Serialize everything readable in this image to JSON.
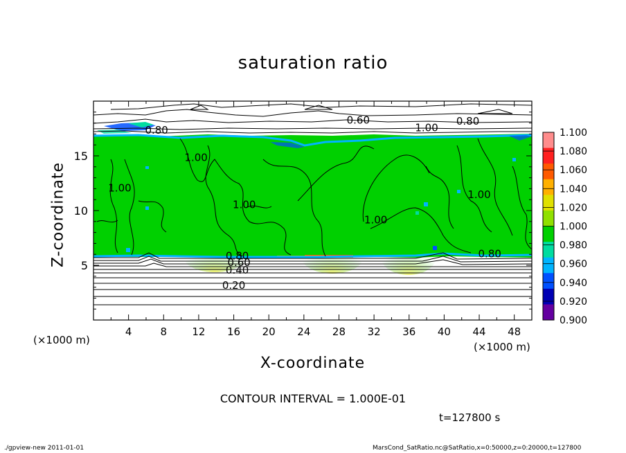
{
  "chart_data": {
    "type": "heatmap",
    "title": "saturation ratio",
    "xlabel": "X-coordinate",
    "ylabel": "Z-coordinate",
    "x_unit_label": "(×1000 m)",
    "x_ticks": [
      "4",
      "8",
      "12",
      "16",
      "20",
      "24",
      "28",
      "32",
      "36",
      "40",
      "44",
      "48"
    ],
    "x_tick_values": [
      4,
      8,
      12,
      16,
      20,
      24,
      28,
      32,
      36,
      40,
      44,
      48
    ],
    "y_ticks": [
      "5",
      "10",
      "15"
    ],
    "y_tick_values": [
      5,
      10,
      15
    ],
    "xlim": [
      0,
      50
    ],
    "ylim": [
      0,
      20
    ],
    "colorbar": {
      "labels": [
        "1.100",
        "1.080",
        "1.060",
        "1.040",
        "1.020",
        "1.000",
        "0.980",
        "0.960",
        "0.940",
        "0.920",
        "0.900"
      ],
      "colors": [
        "#ff8c8c",
        "#ff2020",
        "#ff5a00",
        "#ffb000",
        "#e0e000",
        "#90e000",
        "#00d000",
        "#00dca0",
        "#00b4ff",
        "#0050ff",
        "#0000b4",
        "#6400a0"
      ]
    },
    "contour_labels": [
      {
        "text": "0.60",
        "x": 30.2,
        "y": 18.0
      },
      {
        "text": "0.80",
        "x": 42.7,
        "y": 17.9
      },
      {
        "text": "1.00",
        "x": 38.0,
        "y": 17.3
      },
      {
        "text": "0.80",
        "x": 7.2,
        "y": 17.1
      },
      {
        "text": "1.00",
        "x": 11.7,
        "y": 14.6
      },
      {
        "text": "1.00",
        "x": 3.0,
        "y": 11.8
      },
      {
        "text": "1.00",
        "x": 17.2,
        "y": 10.3
      },
      {
        "text": "1.00",
        "x": 32.2,
        "y": 8.9
      },
      {
        "text": "1.00",
        "x": 44.0,
        "y": 11.2
      },
      {
        "text": "0.80",
        "x": 45.2,
        "y": 5.8
      },
      {
        "text": "0.80",
        "x": 16.4,
        "y": 5.6
      },
      {
        "text": "0.60",
        "x": 16.6,
        "y": 5.0
      },
      {
        "text": "0.40",
        "x": 16.4,
        "y": 4.3
      },
      {
        "text": "0.20",
        "x": 16.0,
        "y": 2.9
      }
    ],
    "contour_interval": "CONTOUR INTERVAL = 1.000E-01",
    "time_label": "t=127800 s"
  },
  "footer": {
    "left": "./gpview-new   2011-01-01",
    "right": "MarsCond_SatRatio.nc@SatRatio,x=0:50000,z=0:20000,t=127800"
  }
}
